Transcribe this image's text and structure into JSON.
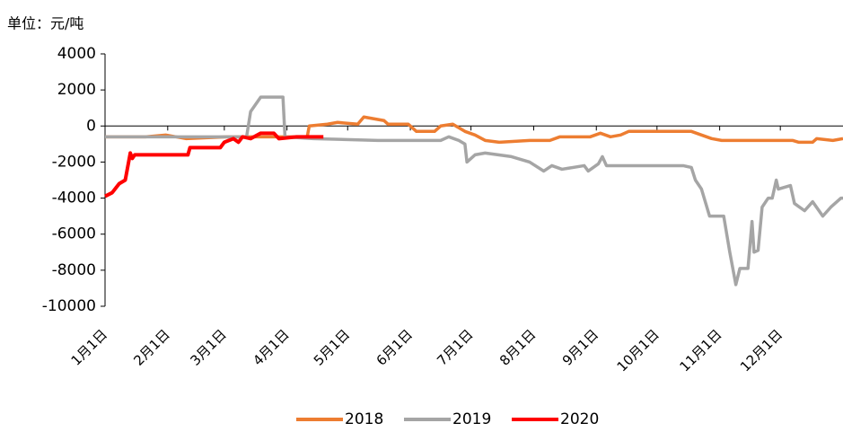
{
  "chart_data": {
    "type": "line",
    "unit_label": "单位：元/吨",
    "xlim": [
      0,
      365
    ],
    "xticks": [
      {
        "value": 0,
        "label": "1月1日"
      },
      {
        "value": 31,
        "label": "2月1日"
      },
      {
        "value": 59,
        "label": "3月1日"
      },
      {
        "value": 90,
        "label": "4月1日"
      },
      {
        "value": 120,
        "label": "5月1日"
      },
      {
        "value": 151,
        "label": "6月1日"
      },
      {
        "value": 181,
        "label": "7月1日"
      },
      {
        "value": 212,
        "label": "8月1日"
      },
      {
        "value": 243,
        "label": "9月1日"
      },
      {
        "value": 273,
        "label": "10月1日"
      },
      {
        "value": 304,
        "label": "11月1日"
      },
      {
        "value": 334,
        "label": "12月1日"
      }
    ],
    "ylim": [
      -10000,
      4000
    ],
    "yticks": [
      -10000,
      -8000,
      -6000,
      -4000,
      -2000,
      0,
      2000,
      4000
    ],
    "series": [
      {
        "name": "2018",
        "color": "#ed7d31",
        "x": [
          0,
          20,
          30,
          40,
          60,
          80,
          100,
          101,
          110,
          115,
          125,
          128,
          133,
          138,
          140,
          150,
          154,
          163,
          166,
          172,
          175,
          178,
          183,
          188,
          195,
          210,
          220,
          225,
          240,
          245,
          250,
          255,
          259,
          290,
          295,
          300,
          305,
          320,
          340,
          343,
          350,
          352,
          360,
          365
        ],
        "values": [
          -600,
          -600,
          -500,
          -700,
          -600,
          -600,
          -600,
          0,
          100,
          200,
          100,
          500,
          400,
          300,
          100,
          100,
          -300,
          -300,
          0,
          100,
          -100,
          -300,
          -500,
          -800,
          -900,
          -800,
          -800,
          -600,
          -600,
          -400,
          -600,
          -500,
          -300,
          -300,
          -500,
          -700,
          -800,
          -800,
          -800,
          -900,
          -900,
          -700,
          -800,
          -700
        ]
      },
      {
        "name": "2019",
        "color": "#a5a5a5",
        "x": [
          0,
          70,
          72,
          77,
          88,
          89,
          103,
          135,
          166,
          170,
          175,
          178,
          179,
          183,
          188,
          201,
          210,
          217,
          221,
          226,
          237,
          239,
          244,
          246,
          248,
          286,
          290,
          292,
          295,
          299,
          306,
          309,
          312,
          314,
          318,
          320,
          321,
          323,
          325,
          328,
          330,
          332,
          333,
          339,
          341,
          346,
          350,
          355,
          359,
          364,
          365
        ],
        "values": [
          -600,
          -600,
          800,
          1600,
          1600,
          -600,
          -700,
          -800,
          -800,
          -600,
          -800,
          -1000,
          -2000,
          -1600,
          -1500,
          -1700,
          -2000,
          -2500,
          -2200,
          -2400,
          -2200,
          -2500,
          -2100,
          -1700,
          -2200,
          -2200,
          -2300,
          -3000,
          -3500,
          -5000,
          -5000,
          -7000,
          -8800,
          -7900,
          -7900,
          -5300,
          -7000,
          -6900,
          -4500,
          -4000,
          -4000,
          -3000,
          -3500,
          -3300,
          -4300,
          -4700,
          -4200,
          -5000,
          -4500,
          -4000,
          -4000
        ]
      },
      {
        "name": "2020",
        "color": "#ff0000",
        "x": [
          0,
          3.5,
          7,
          10,
          12.5,
          13.5,
          14.7,
          41,
          42,
          57,
          59,
          63.5,
          66,
          68,
          72,
          77,
          83.5,
          86,
          94.7,
          108
        ],
        "values": [
          -3900,
          -3700,
          -3200,
          -3000,
          -1500,
          -1800,
          -1600,
          -1600,
          -1200,
          -1200,
          -900,
          -700,
          -900,
          -600,
          -700,
          -400,
          -400,
          -700,
          -600,
          -600
        ]
      }
    ]
  }
}
